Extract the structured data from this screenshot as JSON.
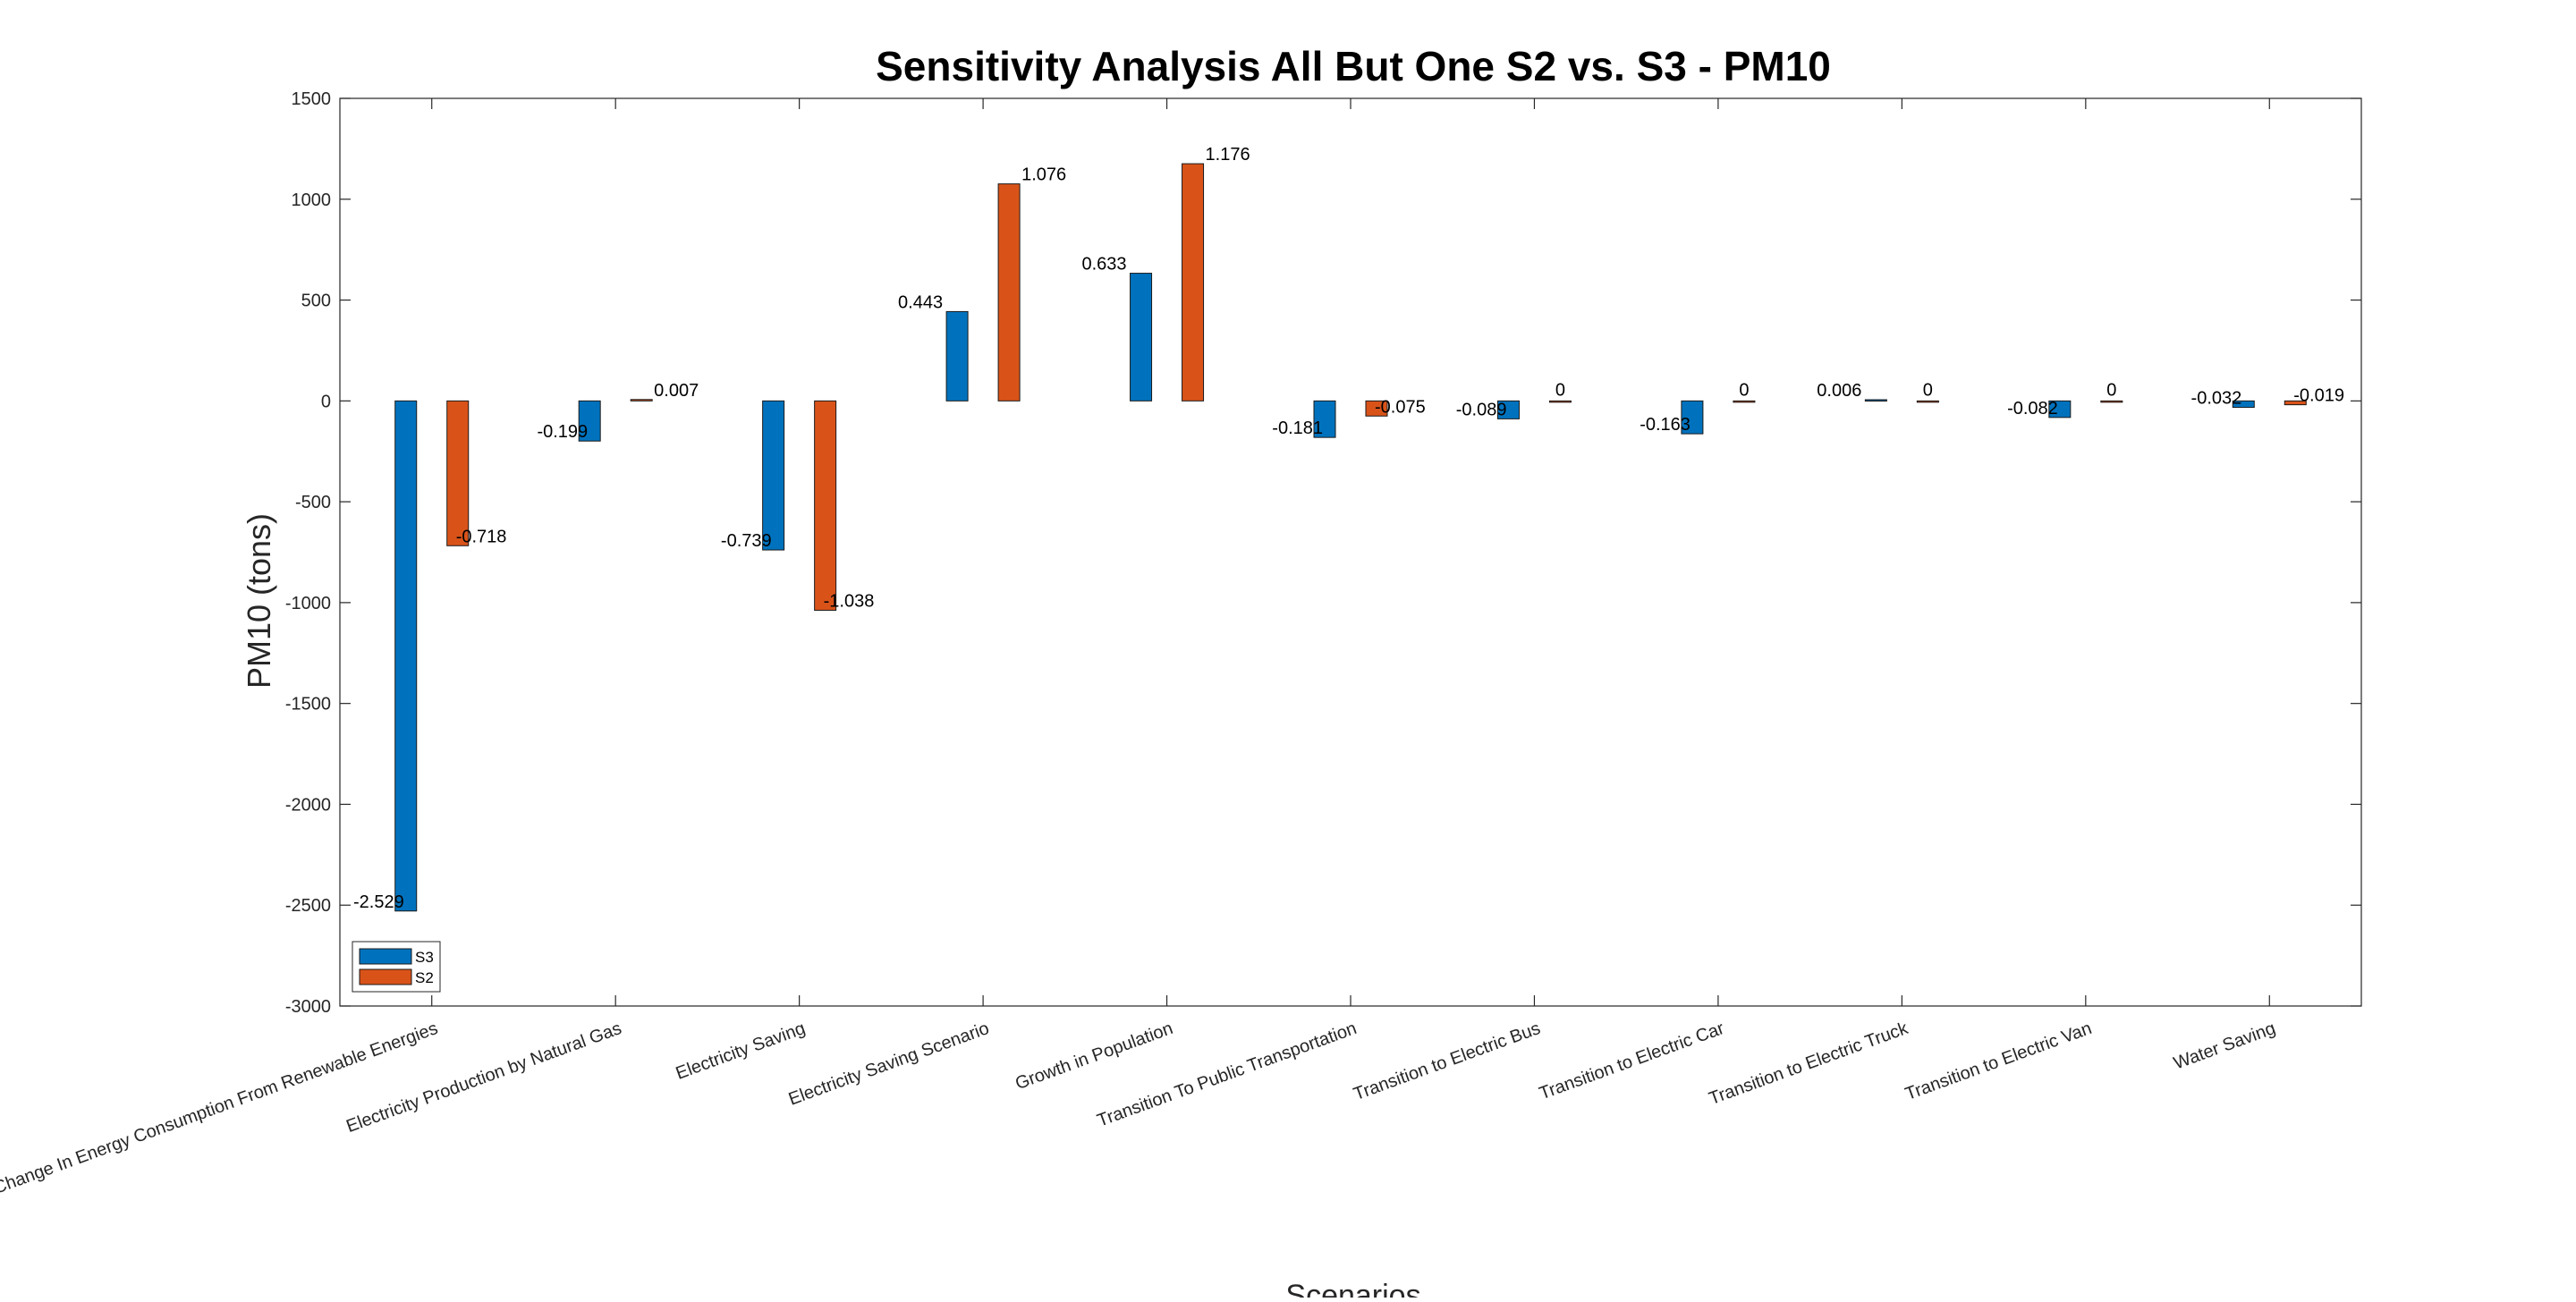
{
  "chart_data": {
    "type": "bar",
    "title": "Sensitivity Analysis All But One S2 vs. S3 - PM10",
    "xlabel": "Scenarios",
    "ylabel": "PM10 (tons)",
    "ylim": [
      -3000,
      1500
    ],
    "yticks": [
      -3000,
      -2500,
      -2000,
      -1500,
      -1000,
      -500,
      0,
      500,
      1000,
      1500
    ],
    "grid": false,
    "legend_position": "bottom-left",
    "categories": [
      "Change In Energy Consumption From Renewable Energies",
      "Electricity Production by Natural Gas",
      "Electricity Saving",
      "Electricity Saving Scenario",
      "Growth in Population",
      "Transition To Public Transportation",
      "Transition to Electric Bus",
      "Transition to Electric Car",
      "Transition to Electric Truck",
      "Transition to Electric Van",
      "Water Saving"
    ],
    "series": [
      {
        "name": "S3",
        "color": "#0072BD",
        "values": [
          -2529,
          -199,
          -739,
          443,
          633,
          -181,
          -89,
          -163,
          6,
          -82,
          -32
        ],
        "labels": [
          "-2.529",
          "-0.199",
          "-0.739",
          "0.443",
          "0.633",
          "-0.181",
          "-0.089",
          "-0.163",
          "0.006",
          "-0.082",
          "-0.032"
        ]
      },
      {
        "name": "S2",
        "color": "#D95319",
        "values": [
          -718,
          7,
          -1038,
          1076,
          1176,
          -75,
          0,
          0,
          0,
          0,
          -19
        ],
        "labels": [
          "-0.718",
          "0.007",
          "-1.038",
          "1.076",
          "1.176",
          "-0.075",
          "0",
          "0",
          "0",
          "0",
          "-0.019"
        ]
      }
    ]
  }
}
